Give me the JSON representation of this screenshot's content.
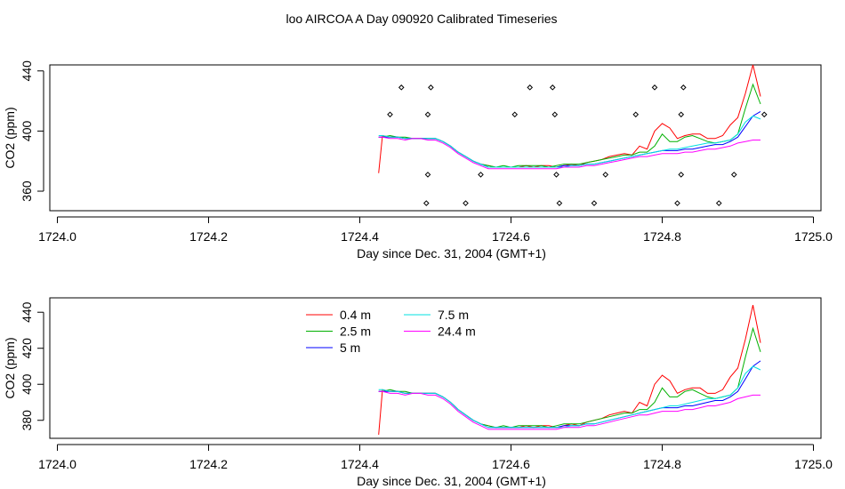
{
  "title": "loo AIRCOA A  Day 090920  Calibrated Timeseries",
  "chart_data": [
    {
      "type": "line",
      "ylabel": "CO2 (ppm)",
      "xlabel": "Day since Dec. 31, 2004 (GMT+1)",
      "xlim": [
        1723.99,
        1725.01
      ],
      "ylim": [
        347,
        444
      ],
      "xticks": [
        1724.0,
        1724.2,
        1724.4,
        1724.6,
        1724.8,
        1725.0
      ],
      "xtick_labels": [
        "1724.0",
        "1724.2",
        "1724.4",
        "1724.6",
        "1724.8",
        "1725.0"
      ],
      "yticks": [
        360,
        400,
        440
      ],
      "ytick_labels": [
        "360",
        "400",
        "440"
      ],
      "grid": false,
      "x": [
        1724.425,
        1724.43,
        1724.44,
        1724.45,
        1724.46,
        1724.47,
        1724.48,
        1724.49,
        1724.5,
        1724.51,
        1724.52,
        1724.53,
        1724.54,
        1724.55,
        1724.56,
        1724.57,
        1724.58,
        1724.59,
        1724.6,
        1724.61,
        1724.62,
        1724.63,
        1724.64,
        1724.65,
        1724.66,
        1724.67,
        1724.68,
        1724.69,
        1724.7,
        1724.71,
        1724.72,
        1724.73,
        1724.74,
        1724.75,
        1724.76,
        1724.77,
        1724.78,
        1724.79,
        1724.8,
        1724.81,
        1724.82,
        1724.83,
        1724.84,
        1724.85,
        1724.86,
        1724.87,
        1724.88,
        1724.89,
        1724.9,
        1724.91,
        1724.92,
        1724.93
      ],
      "series": [
        {
          "name": "0.4 m",
          "color": "#ff0000",
          "values": [
            372,
            397,
            396,
            396,
            395,
            395,
            395,
            395,
            395,
            393,
            390,
            386,
            383,
            380,
            378,
            377,
            376,
            376,
            376,
            376,
            377,
            376,
            377,
            377,
            376,
            377,
            378,
            377,
            379,
            380,
            381,
            383,
            384,
            385,
            384,
            390,
            388,
            400,
            405,
            402,
            395,
            397,
            398,
            398,
            395,
            395,
            397,
            404,
            409,
            425,
            444,
            423
          ]
        },
        {
          "name": "2.5 m",
          "color": "#00b000",
          "values": [
            396,
            396,
            397,
            396,
            396,
            395,
            395,
            395,
            395,
            393,
            390,
            386,
            383,
            380,
            378,
            377,
            376,
            377,
            376,
            377,
            377,
            377,
            377,
            376,
            377,
            378,
            378,
            378,
            379,
            380,
            381,
            382,
            383,
            384,
            384,
            386,
            386,
            390,
            398,
            393,
            393,
            396,
            397,
            395,
            393,
            392,
            393,
            394,
            398,
            415,
            431,
            418
          ]
        },
        {
          "name": "5 m",
          "color": "#0000ff",
          "values": [
            396,
            396,
            396,
            396,
            395,
            395,
            395,
            395,
            395,
            393,
            390,
            386,
            383,
            380,
            378,
            376,
            376,
            376,
            376,
            376,
            376,
            376,
            376,
            376,
            376,
            377,
            377,
            377,
            378,
            378,
            379,
            380,
            381,
            382,
            383,
            384,
            385,
            386,
            387,
            387,
            387,
            388,
            388,
            389,
            390,
            391,
            391,
            393,
            396,
            403,
            410,
            413
          ]
        },
        {
          "name": "7.5 m",
          "color": "#00e0e0",
          "values": [
            397,
            397,
            396,
            396,
            395,
            395,
            395,
            395,
            395,
            393,
            390,
            386,
            383,
            380,
            378,
            376,
            376,
            376,
            376,
            376,
            376,
            376,
            376,
            376,
            376,
            376,
            377,
            377,
            378,
            378,
            379,
            380,
            381,
            382,
            383,
            384,
            385,
            386,
            387,
            388,
            388,
            389,
            390,
            391,
            392,
            392,
            393,
            394,
            398,
            406,
            410,
            408
          ]
        },
        {
          "name": "24.4 m",
          "color": "#ff00ff",
          "values": [
            396,
            396,
            395,
            395,
            394,
            395,
            395,
            394,
            394,
            392,
            389,
            385,
            382,
            379,
            377,
            375,
            375,
            375,
            375,
            375,
            375,
            375,
            375,
            375,
            375,
            376,
            376,
            376,
            377,
            377,
            378,
            379,
            380,
            381,
            382,
            383,
            383,
            384,
            385,
            385,
            385,
            386,
            386,
            387,
            388,
            388,
            389,
            390,
            392,
            393,
            394,
            394
          ]
        }
      ],
      "markers": [
        {
          "x": 1724.44,
          "y": 411
        },
        {
          "x": 1724.455,
          "y": 429
        },
        {
          "x": 1724.49,
          "y": 411
        },
        {
          "x": 1724.49,
          "y": 371
        },
        {
          "x": 1724.488,
          "y": 352
        },
        {
          "x": 1724.494,
          "y": 429
        },
        {
          "x": 1724.54,
          "y": 352
        },
        {
          "x": 1724.56,
          "y": 371
        },
        {
          "x": 1724.605,
          "y": 411
        },
        {
          "x": 1724.625,
          "y": 429
        },
        {
          "x": 1724.655,
          "y": 429
        },
        {
          "x": 1724.658,
          "y": 411
        },
        {
          "x": 1724.66,
          "y": 371
        },
        {
          "x": 1724.664,
          "y": 352
        },
        {
          "x": 1724.71,
          "y": 352
        },
        {
          "x": 1724.725,
          "y": 371
        },
        {
          "x": 1724.765,
          "y": 411
        },
        {
          "x": 1724.79,
          "y": 429
        },
        {
          "x": 1724.82,
          "y": 352
        },
        {
          "x": 1724.825,
          "y": 371
        },
        {
          "x": 1724.825,
          "y": 411
        },
        {
          "x": 1724.828,
          "y": 429
        },
        {
          "x": 1724.875,
          "y": 352
        },
        {
          "x": 1724.895,
          "y": 371
        },
        {
          "x": 1724.935,
          "y": 411
        }
      ]
    },
    {
      "type": "line",
      "ylabel": "CO2 (ppm)",
      "xlabel": "Day since Dec. 31, 2004 (GMT+1)",
      "xlim": [
        1723.99,
        1725.01
      ],
      "ylim": [
        370,
        448
      ],
      "xticks": [
        1724.0,
        1724.2,
        1724.4,
        1724.6,
        1724.8,
        1725.0
      ],
      "xtick_labels": [
        "1724.0",
        "1724.2",
        "1724.4",
        "1724.6",
        "1724.8",
        "1725.0"
      ],
      "yticks": [
        380,
        400,
        420,
        440
      ],
      "ytick_labels": [
        "380",
        "400",
        "420",
        "440"
      ],
      "grid": false,
      "legend": {
        "position": "top-center",
        "entries": [
          {
            "label": "0.4 m",
            "color": "#ff0000"
          },
          {
            "label": "2.5 m",
            "color": "#00b000"
          },
          {
            "label": "5 m",
            "color": "#0000ff"
          },
          {
            "label": "7.5 m",
            "color": "#00e0e0"
          },
          {
            "label": "24.4 m",
            "color": "#ff00ff"
          }
        ]
      },
      "x": [
        1724.425,
        1724.43,
        1724.44,
        1724.45,
        1724.46,
        1724.47,
        1724.48,
        1724.49,
        1724.5,
        1724.51,
        1724.52,
        1724.53,
        1724.54,
        1724.55,
        1724.56,
        1724.57,
        1724.58,
        1724.59,
        1724.6,
        1724.61,
        1724.62,
        1724.63,
        1724.64,
        1724.65,
        1724.66,
        1724.67,
        1724.68,
        1724.69,
        1724.7,
        1724.71,
        1724.72,
        1724.73,
        1724.74,
        1724.75,
        1724.76,
        1724.77,
        1724.78,
        1724.79,
        1724.8,
        1724.81,
        1724.82,
        1724.83,
        1724.84,
        1724.85,
        1724.86,
        1724.87,
        1724.88,
        1724.89,
        1724.9,
        1724.91,
        1724.92,
        1724.93
      ],
      "series": [
        {
          "name": "0.4 m",
          "color": "#ff0000",
          "values": [
            372,
            397,
            396,
            396,
            395,
            395,
            395,
            395,
            395,
            393,
            390,
            386,
            383,
            380,
            378,
            377,
            376,
            376,
            376,
            376,
            377,
            376,
            377,
            377,
            376,
            377,
            378,
            377,
            379,
            380,
            381,
            383,
            384,
            385,
            384,
            390,
            388,
            400,
            405,
            402,
            395,
            397,
            398,
            398,
            395,
            395,
            397,
            404,
            409,
            425,
            444,
            423
          ]
        },
        {
          "name": "2.5 m",
          "color": "#00b000",
          "values": [
            396,
            396,
            397,
            396,
            396,
            395,
            395,
            395,
            395,
            393,
            390,
            386,
            383,
            380,
            378,
            377,
            376,
            377,
            376,
            377,
            377,
            377,
            377,
            376,
            377,
            378,
            378,
            378,
            379,
            380,
            381,
            382,
            383,
            384,
            384,
            386,
            386,
            390,
            398,
            393,
            393,
            396,
            397,
            395,
            393,
            392,
            393,
            394,
            398,
            415,
            431,
            418
          ]
        },
        {
          "name": "5 m",
          "color": "#0000ff",
          "values": [
            396,
            396,
            396,
            396,
            395,
            395,
            395,
            395,
            395,
            393,
            390,
            386,
            383,
            380,
            378,
            376,
            376,
            376,
            376,
            376,
            376,
            376,
            376,
            376,
            376,
            377,
            377,
            377,
            378,
            378,
            379,
            380,
            381,
            382,
            383,
            384,
            385,
            386,
            387,
            387,
            387,
            388,
            388,
            389,
            390,
            391,
            391,
            393,
            396,
            403,
            410,
            413
          ]
        },
        {
          "name": "7.5 m",
          "color": "#00e0e0",
          "values": [
            397,
            397,
            396,
            396,
            395,
            395,
            395,
            395,
            395,
            393,
            390,
            386,
            383,
            380,
            378,
            376,
            376,
            376,
            376,
            376,
            376,
            376,
            376,
            376,
            376,
            376,
            377,
            377,
            378,
            378,
            379,
            380,
            381,
            382,
            383,
            384,
            385,
            386,
            387,
            388,
            388,
            389,
            390,
            391,
            392,
            392,
            393,
            394,
            398,
            406,
            410,
            408
          ]
        },
        {
          "name": "24.4 m",
          "color": "#ff00ff",
          "values": [
            396,
            396,
            395,
            395,
            394,
            395,
            395,
            394,
            394,
            392,
            389,
            385,
            382,
            379,
            377,
            375,
            375,
            375,
            375,
            375,
            375,
            375,
            375,
            375,
            375,
            376,
            376,
            376,
            377,
            377,
            378,
            379,
            380,
            381,
            382,
            383,
            383,
            384,
            385,
            385,
            385,
            386,
            386,
            387,
            388,
            388,
            389,
            390,
            392,
            393,
            394,
            394
          ]
        }
      ]
    }
  ]
}
